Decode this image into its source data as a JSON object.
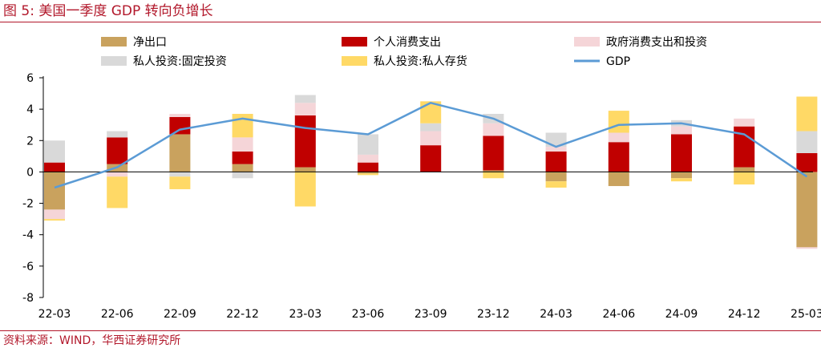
{
  "title": "图 5:  美国一季度 GDP 转向负增长",
  "source": "资料来源：WIND，华西证券研究所",
  "chart_data": {
    "type": "bar",
    "stacked": true,
    "categories": [
      "22-03",
      "22-06",
      "22-09",
      "22-12",
      "23-03",
      "23-06",
      "23-09",
      "23-12",
      "24-03",
      "24-06",
      "24-09",
      "24-12",
      "25-03"
    ],
    "ylim": [
      -8,
      6
    ],
    "yticks": [
      "6",
      "4",
      "2",
      "0",
      "-2",
      "-4",
      "-6",
      "-8"
    ],
    "legend_position": "top",
    "series": [
      {
        "name": "净出口",
        "color": "#c9a25e",
        "values": [
          -2.4,
          0.5,
          2.4,
          0.5,
          0.3,
          -0.1,
          0.0,
          0.1,
          -0.6,
          -0.9,
          -0.4,
          0.3,
          -4.8
        ]
      },
      {
        "name": "个人消费支出",
        "color": "#c00000",
        "values": [
          0.6,
          1.7,
          1.1,
          0.8,
          3.3,
          0.6,
          1.7,
          2.2,
          1.3,
          1.9,
          2.4,
          2.6,
          1.2
        ]
      },
      {
        "name": "政府消费支出和投资",
        "color": "#f5d5d8",
        "values": [
          -0.6,
          -0.3,
          0.2,
          0.9,
          0.8,
          0.5,
          0.9,
          0.8,
          0.3,
          0.6,
          0.5,
          0.5,
          -0.1
        ]
      },
      {
        "name": "私人投资:固定投资",
        "color": "#d9d9d9",
        "values": [
          1.4,
          0.4,
          -0.3,
          -0.4,
          0.5,
          1.3,
          0.5,
          0.6,
          0.9,
          0.0,
          0.4,
          0.0,
          1.4
        ]
      },
      {
        "name": "私人投资:私人存货",
        "color": "#ffd966",
        "values": [
          -0.1,
          -2.0,
          -0.8,
          1.5,
          -2.2,
          -0.1,
          1.4,
          -0.4,
          -0.4,
          1.4,
          -0.2,
          -0.8,
          2.2
        ]
      },
      {
        "name": "GDP",
        "type": "line",
        "color": "#5b9bd5",
        "values": [
          -1.0,
          0.3,
          2.7,
          3.4,
          2.8,
          2.4,
          4.4,
          3.4,
          1.6,
          3.0,
          3.1,
          2.4,
          -0.3
        ]
      }
    ]
  }
}
